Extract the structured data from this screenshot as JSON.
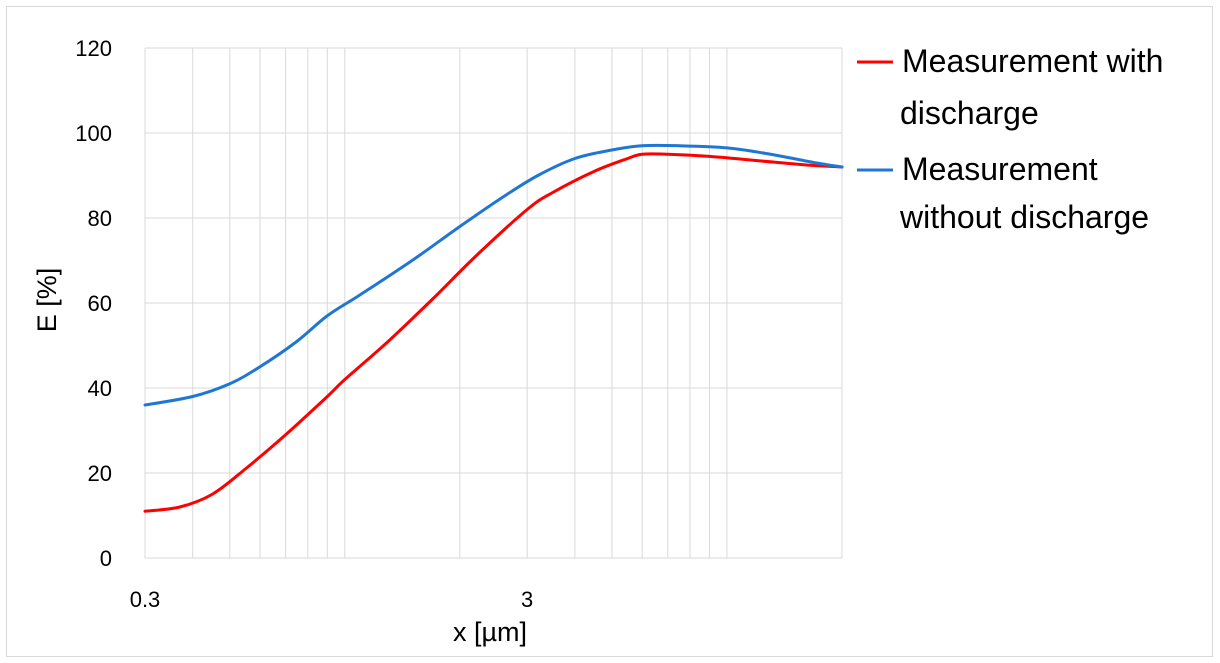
{
  "chart_data": {
    "type": "line",
    "title": "",
    "xlabel": "x [µm]",
    "ylabel": "E [%]",
    "xscale": "log",
    "xlim": [
      0.3,
      20
    ],
    "ylim": [
      0,
      120
    ],
    "x_tick_labels": [
      "0.3",
      "3"
    ],
    "y_ticks": [
      0,
      20,
      40,
      60,
      80,
      100,
      120
    ],
    "grid": true,
    "legend_position": "right",
    "series": [
      {
        "name": "Measurement with discharge",
        "color": "#ff0000",
        "points": [
          [
            0.3,
            11
          ],
          [
            0.37,
            12
          ],
          [
            0.45,
            15
          ],
          [
            0.55,
            21
          ],
          [
            0.7,
            29
          ],
          [
            0.9,
            38
          ],
          [
            1.0,
            42
          ],
          [
            1.3,
            51
          ],
          [
            1.7,
            61
          ],
          [
            2.2,
            71
          ],
          [
            3.0,
            82
          ],
          [
            3.5,
            86
          ],
          [
            4.5,
            91
          ],
          [
            5.5,
            94
          ],
          [
            6.0,
            95
          ],
          [
            7.0,
            95
          ],
          [
            9.0,
            94.5
          ],
          [
            12.0,
            93.5
          ],
          [
            16.0,
            92.5
          ],
          [
            20.0,
            92
          ]
        ]
      },
      {
        "name": "Measurement without discharge",
        "color": "#1f77d4",
        "points": [
          [
            0.3,
            36
          ],
          [
            0.4,
            38
          ],
          [
            0.5,
            41
          ],
          [
            0.6,
            45
          ],
          [
            0.75,
            51
          ],
          [
            0.9,
            57
          ],
          [
            1.1,
            62
          ],
          [
            1.5,
            70
          ],
          [
            2.0,
            78
          ],
          [
            2.6,
            85
          ],
          [
            3.2,
            90
          ],
          [
            4.0,
            94
          ],
          [
            5.0,
            96
          ],
          [
            6.0,
            97
          ],
          [
            7.5,
            97
          ],
          [
            10.0,
            96.5
          ],
          [
            13.0,
            95
          ],
          [
            17.0,
            93
          ],
          [
            20.0,
            92
          ]
        ]
      }
    ]
  }
}
